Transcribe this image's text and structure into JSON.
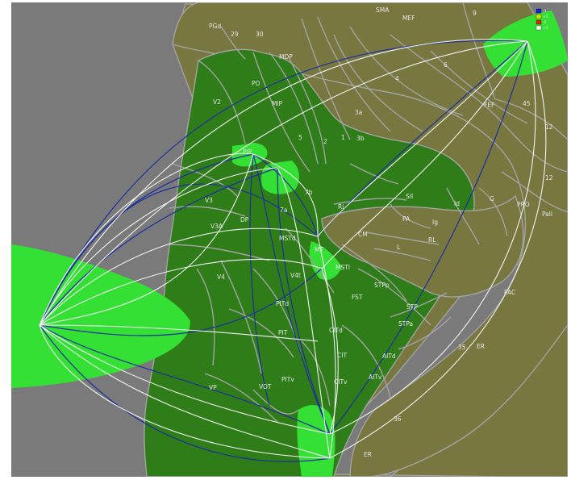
{
  "colors": {
    "background": "#7a7a7a",
    "cortex_dark": "#2e7d18",
    "cortex_olive": "#77773f",
    "highlight": "#33e033",
    "border": "#a3a3a3",
    "path_blue": "#1d2fa0",
    "path_white": "#f2f2f2"
  },
  "legend": {
    "swatches": [
      {
        "color": "#1122dd",
        "text": "-1"
      },
      {
        "color": "#dddd00",
        "text": "+1"
      },
      {
        "color": "#dd2200",
        "text": "-1"
      },
      {
        "color": "#ffffff",
        "text": "+1"
      }
    ]
  },
  "areas": [
    {
      "name": "area-smа",
      "text": "SMA"
    },
    {
      "name": "area-mef",
      "text": "MEF"
    },
    {
      "name": "area-9",
      "text": "9"
    },
    {
      "name": "area-pgd",
      "text": "PGd"
    },
    {
      "name": "area-29",
      "text": "29"
    },
    {
      "name": "area-30",
      "text": "30"
    },
    {
      "name": "area-mdp",
      "text": "MDP"
    },
    {
      "name": "area-po",
      "text": "PO"
    },
    {
      "name": "area-v2",
      "text": "V2"
    },
    {
      "name": "area-mip",
      "text": "MIP"
    },
    {
      "name": "area-4",
      "text": "4"
    },
    {
      "name": "area-6",
      "text": "6"
    },
    {
      "name": "area-fef",
      "text": "FEF"
    },
    {
      "name": "area-45",
      "text": "45"
    },
    {
      "name": "area-12a",
      "text": "12"
    },
    {
      "name": "area-12b",
      "text": "12"
    },
    {
      "name": "area-3a",
      "text": "3a"
    },
    {
      "name": "area-3b",
      "text": "3b"
    },
    {
      "name": "area-2",
      "text": "2"
    },
    {
      "name": "area-1",
      "text": "1"
    },
    {
      "name": "area-5",
      "text": "5"
    },
    {
      "name": "area-pip",
      "text": "PIP"
    },
    {
      "name": "area-7b",
      "text": "7b"
    },
    {
      "name": "area-sii",
      "text": "SII"
    },
    {
      "name": "area-id",
      "text": "Id"
    },
    {
      "name": "area-g",
      "text": "G"
    },
    {
      "name": "area-pro",
      "text": "PRO"
    },
    {
      "name": "area-pall",
      "text": "Pall"
    },
    {
      "name": "area-v3",
      "text": "V3"
    },
    {
      "name": "area-dp",
      "text": "DP"
    },
    {
      "name": "area-7a",
      "text": "7a"
    },
    {
      "name": "area-ri",
      "text": "Ri"
    },
    {
      "name": "area-pa",
      "text": "PA"
    },
    {
      "name": "area-ig",
      "text": "Ig"
    },
    {
      "name": "area-cm",
      "text": "CM"
    },
    {
      "name": "area-rl",
      "text": "RL"
    },
    {
      "name": "area-l",
      "text": "L"
    },
    {
      "name": "area-v3a",
      "text": "V3A"
    },
    {
      "name": "area-mstd",
      "text": "MSTd"
    },
    {
      "name": "area-mt",
      "text": "MT"
    },
    {
      "name": "area-msti",
      "text": "MSTl"
    },
    {
      "name": "area-v4",
      "text": "V4"
    },
    {
      "name": "area-v4t",
      "text": "V4t"
    },
    {
      "name": "area-stpp",
      "text": "STPp"
    },
    {
      "name": "area-fst",
      "text": "FST"
    },
    {
      "name": "area-pitd",
      "text": "PITd"
    },
    {
      "name": "area-stp",
      "text": "STP"
    },
    {
      "name": "area-stpa",
      "text": "STPa"
    },
    {
      "name": "area-pac",
      "text": "PAC"
    },
    {
      "name": "area-pit",
      "text": "PIT"
    },
    {
      "name": "area-citd",
      "text": "CITd"
    },
    {
      "name": "area-aitd",
      "text": "AITd"
    },
    {
      "name": "area-cit",
      "text": "CIT"
    },
    {
      "name": "area-35",
      "text": "35"
    },
    {
      "name": "area-er-right",
      "text": "ER"
    },
    {
      "name": "area-citv",
      "text": "CITv"
    },
    {
      "name": "area-vp",
      "text": "VP"
    },
    {
      "name": "area-vot",
      "text": "VOT"
    },
    {
      "name": "area-pitv",
      "text": "PITv"
    },
    {
      "name": "area-aitv",
      "text": "AITv"
    },
    {
      "name": "area-36",
      "text": "36"
    },
    {
      "name": "area-er-bottom",
      "text": "ER"
    }
  ]
}
